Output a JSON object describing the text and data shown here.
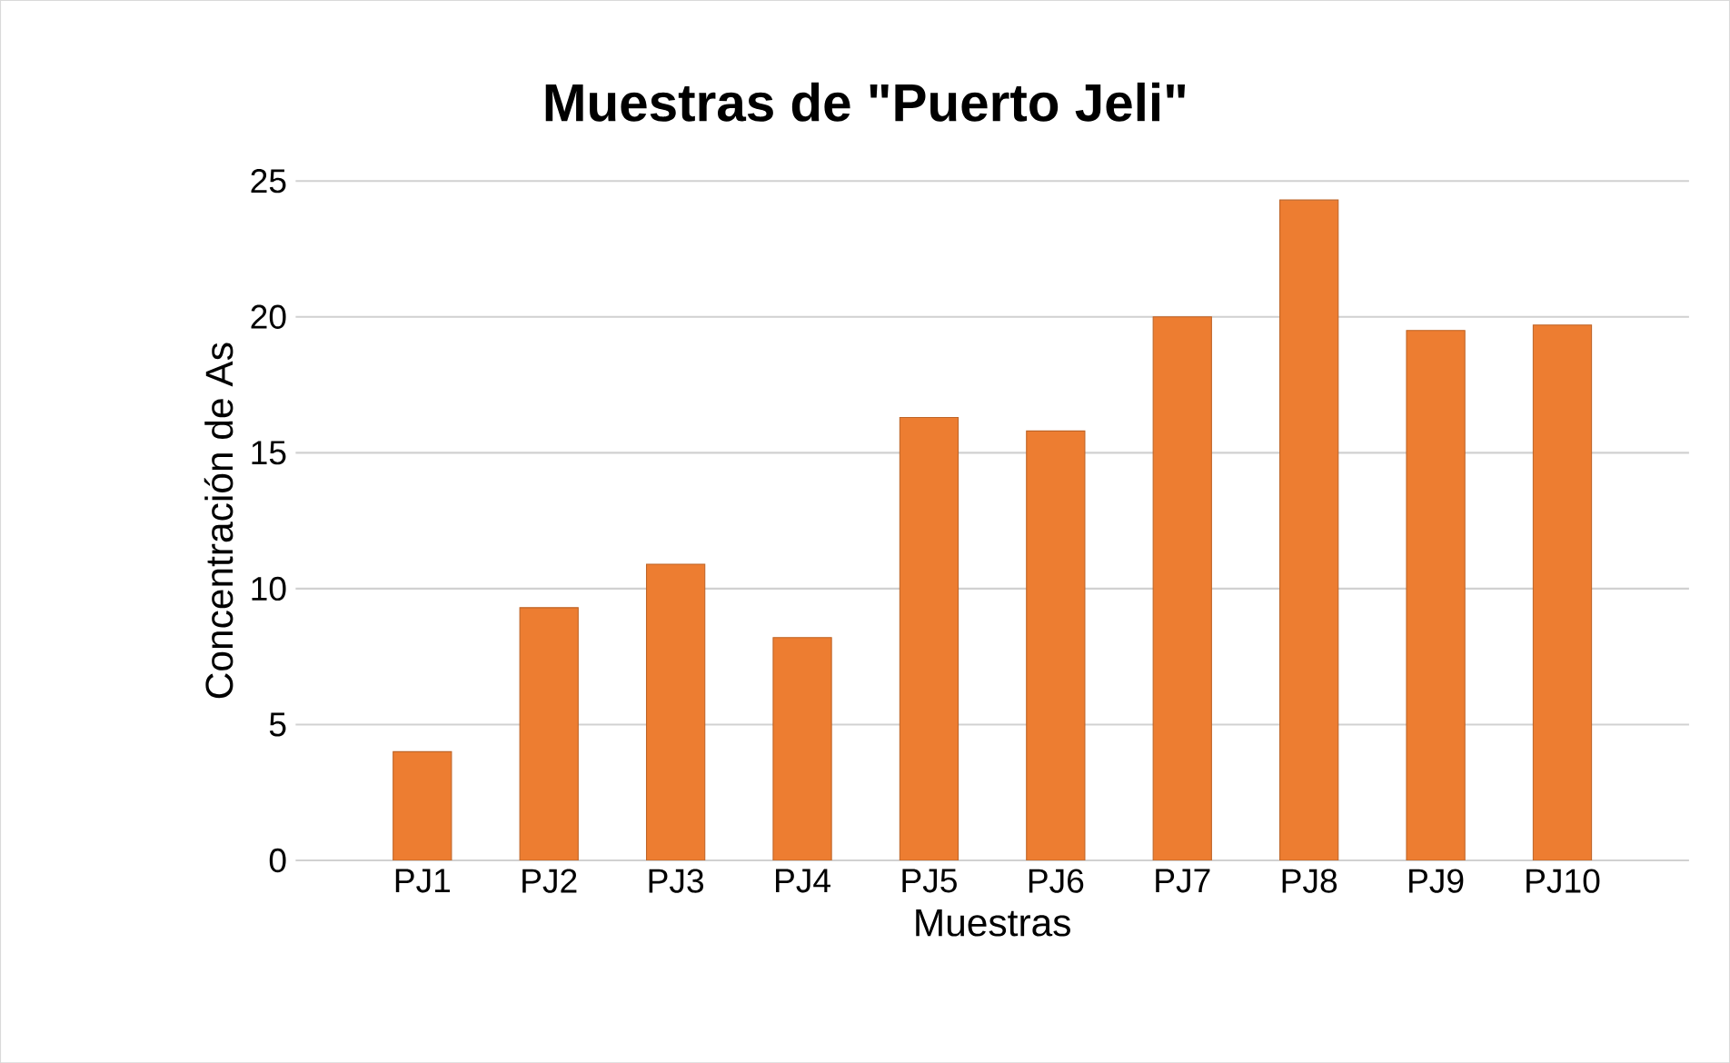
{
  "chart_data": {
    "type": "bar",
    "title": "Muestras de \"Puerto Jeli\"",
    "xlabel": "Muestras",
    "ylabel": "Concentración de As",
    "categories": [
      "PJ1",
      "PJ2",
      "PJ3",
      "PJ4",
      "PJ5",
      "PJ6",
      "PJ7",
      "PJ8",
      "PJ9",
      "PJ10"
    ],
    "values": [
      4.0,
      9.3,
      10.9,
      8.2,
      16.3,
      15.8,
      20.0,
      24.3,
      19.5,
      19.7
    ],
    "color": "#ed7d31",
    "ylim": [
      0,
      25
    ],
    "yticks": [
      0,
      5,
      10,
      15,
      20,
      25
    ],
    "grid": "y"
  }
}
